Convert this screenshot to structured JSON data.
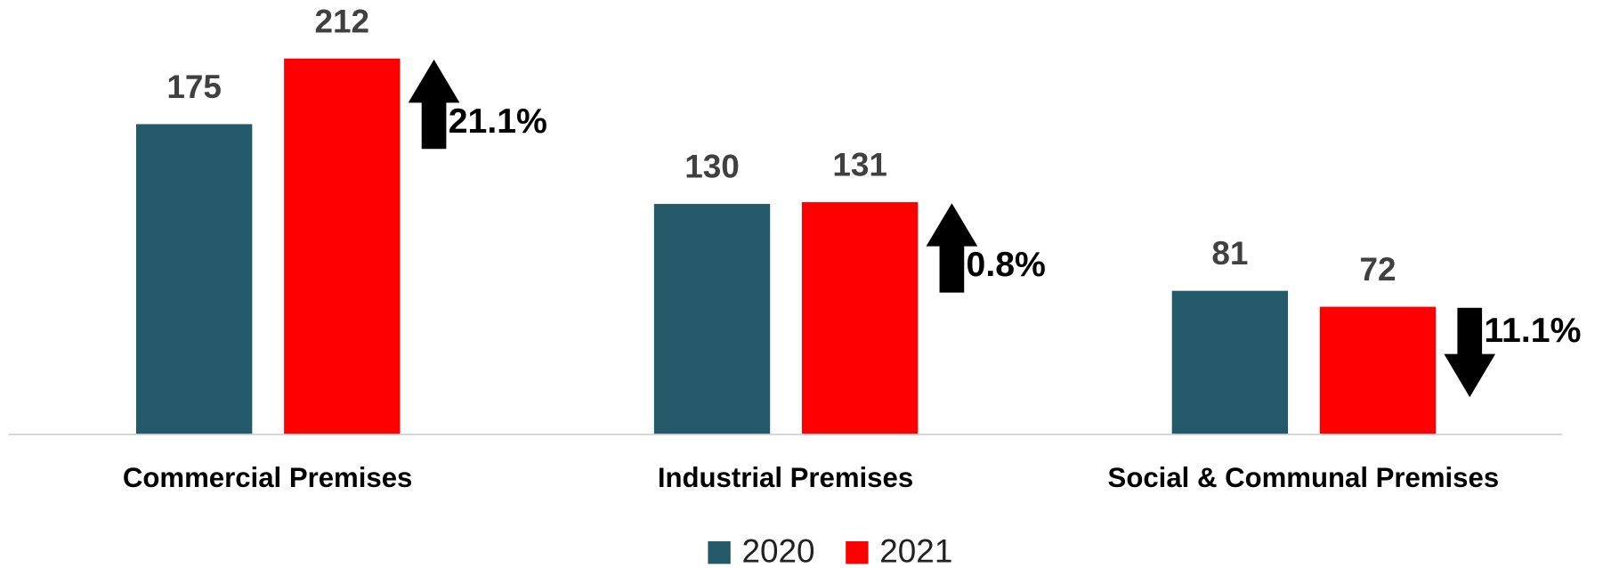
{
  "chart_data": {
    "type": "bar",
    "categories": [
      "Commercial Premises",
      "Industrial Premises",
      "Social & Communal Premises"
    ],
    "series": [
      {
        "name": "2020",
        "color": "#235968",
        "values": [
          175,
          130,
          81
        ]
      },
      {
        "name": "2021",
        "color": "#ff0000",
        "values": [
          212,
          131,
          72
        ]
      }
    ],
    "annotations": [
      {
        "text": "21.1%",
        "direction": "up"
      },
      {
        "text": "0.8%",
        "direction": "up"
      },
      {
        "text": "11.1%",
        "direction": "down"
      }
    ],
    "ylim": [
      0,
      245
    ],
    "legend": "bottom"
  }
}
